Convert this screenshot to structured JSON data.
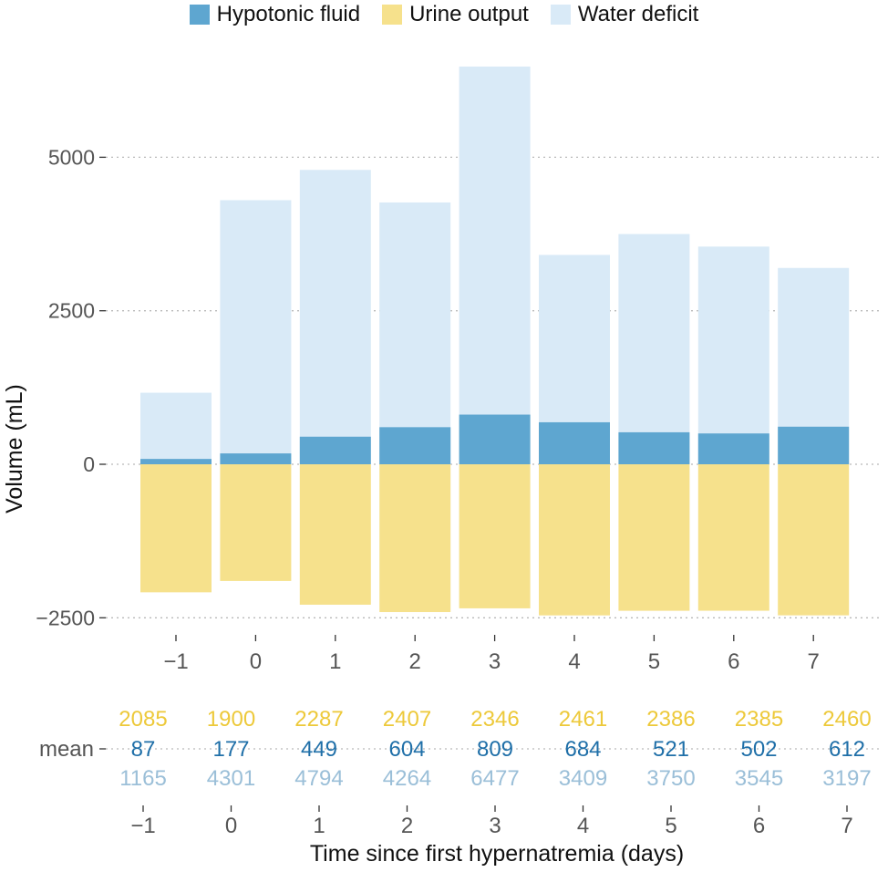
{
  "chart_data": {
    "type": "bar",
    "stacked": true,
    "categories": [
      "−1",
      "0",
      "1",
      "2",
      "3",
      "4",
      "5",
      "6",
      "7"
    ],
    "series": [
      {
        "name": "Hypotonic fluid",
        "color": "#5ea6d0",
        "values": [
          87,
          177,
          449,
          604,
          809,
          684,
          521,
          502,
          612
        ]
      },
      {
        "name": "Urine output",
        "color": "#f6e18c",
        "values": [
          -2085,
          -1900,
          -2287,
          -2407,
          -2346,
          -2461,
          -2386,
          -2385,
          -2460
        ]
      },
      {
        "name": "Water deficit",
        "color": "#d9eaf7",
        "values": [
          1165,
          4301,
          4794,
          4264,
          6477,
          3409,
          3750,
          3545,
          3197
        ]
      }
    ],
    "ylabel": "Volume (mL)",
    "xlabel": "Time since first hypernatremia (days)",
    "yticks": [
      -2500,
      0,
      2500,
      5000
    ],
    "ytick_labels": [
      "−2500",
      "0",
      "2500",
      "5000"
    ],
    "ylim": [
      -2900,
      6700
    ],
    "grid": "horizontal dotted",
    "legend_position": "top",
    "mean_table": {
      "row_label": "mean",
      "urine_output": [
        "2085",
        "1900",
        "2287",
        "2407",
        "2346",
        "2461",
        "2386",
        "2385",
        "2460"
      ],
      "hypotonic_fluid": [
        "87",
        "177",
        "449",
        "604",
        "809",
        "684",
        "521",
        "502",
        "612"
      ],
      "water_deficit": [
        "1165",
        "4301",
        "4794",
        "4264",
        "6477",
        "3409",
        "3750",
        "3545",
        "3197"
      ],
      "colors": {
        "urine_output": "#edc93a",
        "hypotonic_fluid": "#1f6fa8",
        "water_deficit": "#9bbfd8"
      }
    }
  }
}
